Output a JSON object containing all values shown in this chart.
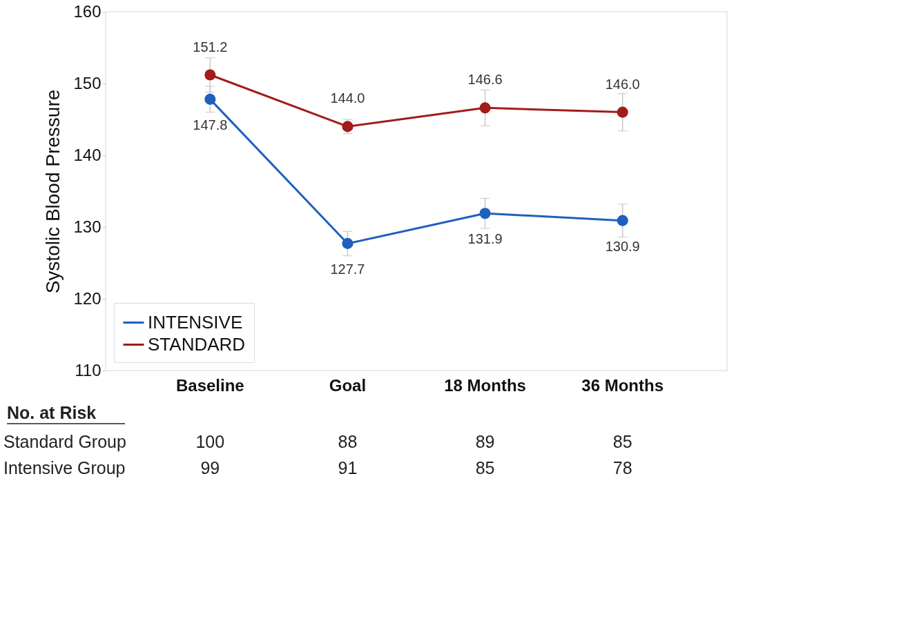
{
  "chart_data": {
    "type": "line",
    "ylabel": "Systolic Blood Pressure",
    "categories": [
      "Baseline",
      "Goal",
      "18 Months",
      "36 Months"
    ],
    "ylim": [
      110,
      160
    ],
    "yticks": [
      110,
      120,
      130,
      140,
      150,
      160
    ],
    "grid": false,
    "legend": "bottom left",
    "marker": "circle",
    "line_style": "solid",
    "series": [
      {
        "name": "INTENSIVE",
        "color": "#1f5fbf",
        "values": [
          147.8,
          127.7,
          131.9,
          130.9
        ],
        "value_labels": [
          "147.8",
          "127.7",
          "131.9",
          "130.9"
        ],
        "errors": [
          1.8,
          1.7,
          2.1,
          2.3
        ]
      },
      {
        "name": "STANDARD",
        "color": "#a31b1b",
        "values": [
          151.2,
          144.0,
          146.6,
          146.0
        ],
        "value_labels": [
          "151.2",
          "144.0",
          "146.6",
          "146.0"
        ],
        "errors": [
          2.4,
          1.0,
          2.5,
          2.6
        ]
      }
    ],
    "annotations": [
      "No. at Risk",
      "Standard Group",
      "100",
      "88",
      "89",
      "85",
      "Intensive Group",
      "99",
      "91",
      "85",
      "78"
    ]
  }
}
